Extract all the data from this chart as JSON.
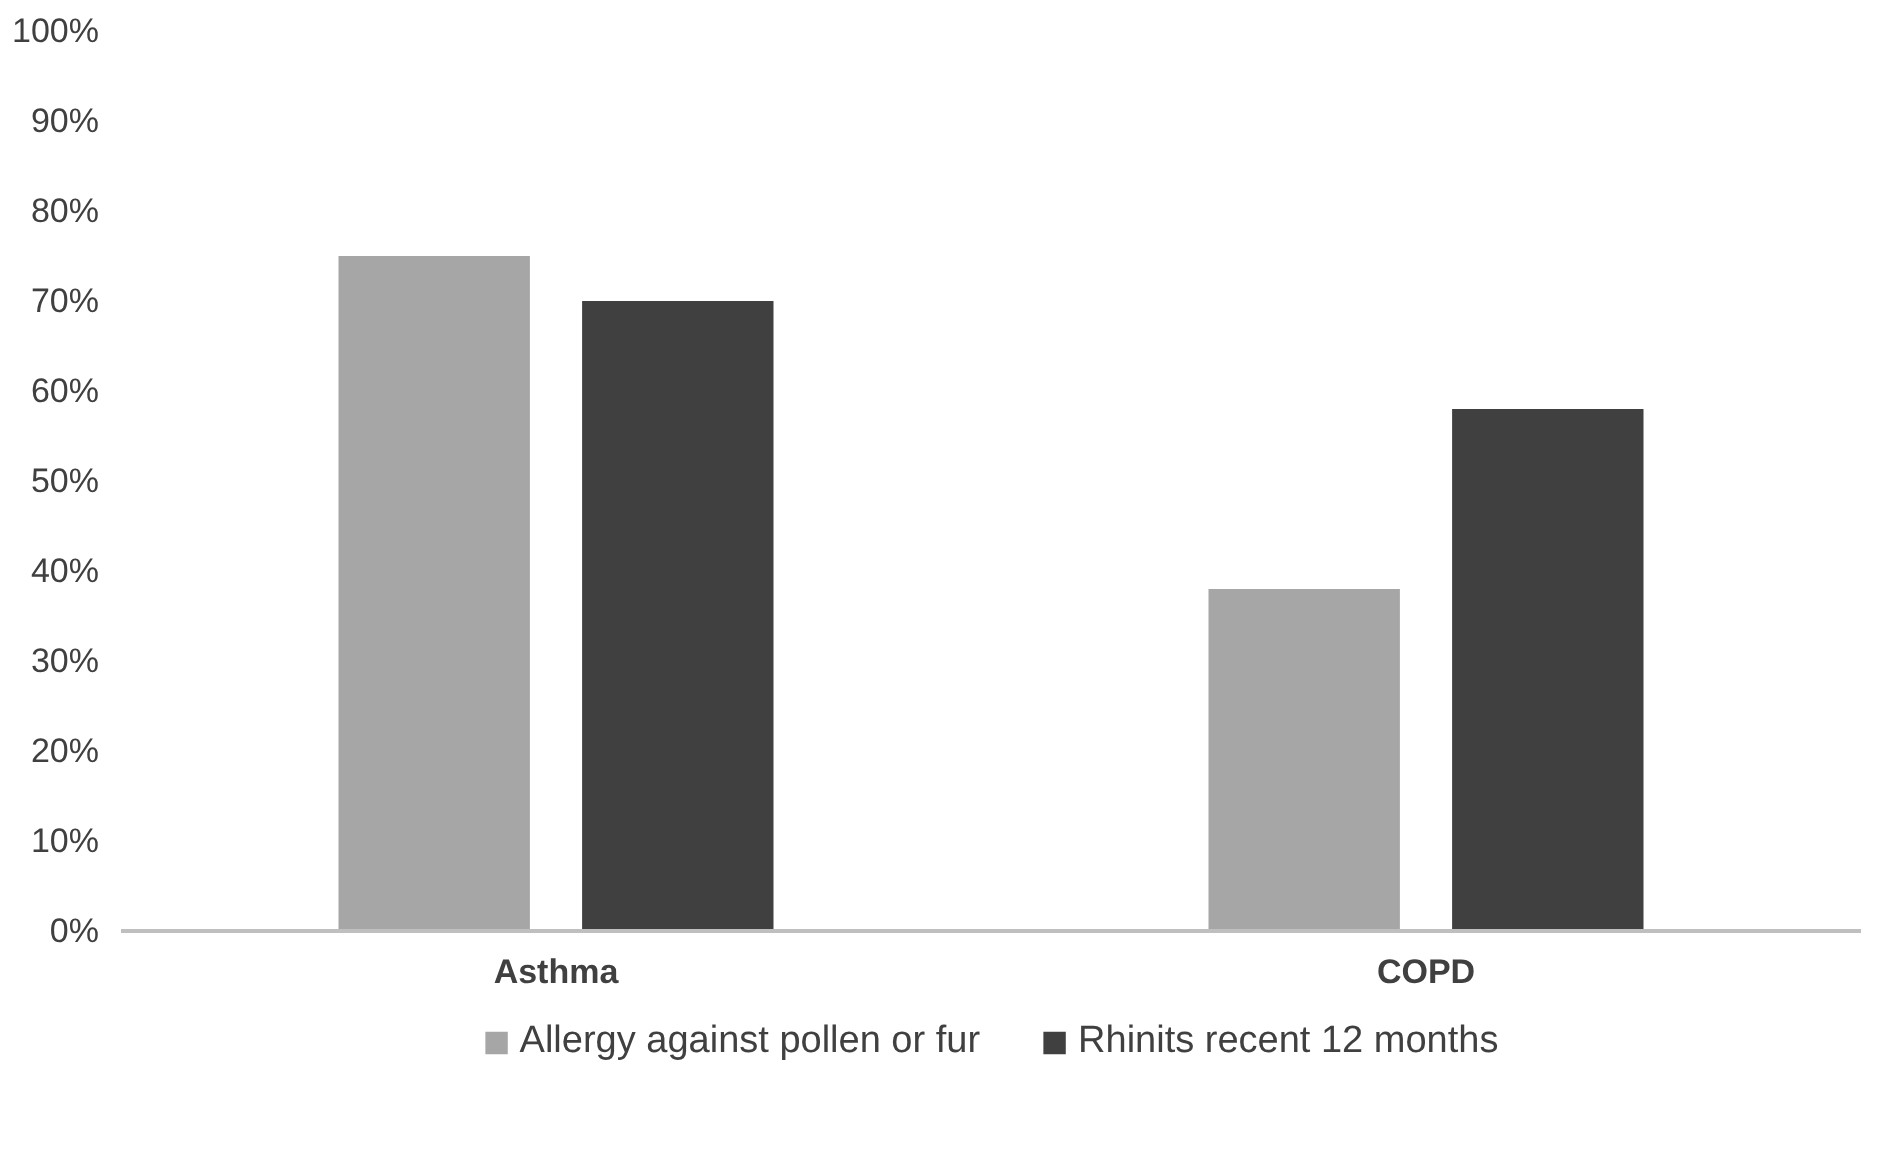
{
  "chart_data": {
    "type": "bar",
    "categories": [
      "Asthma",
      "COPD"
    ],
    "series": [
      {
        "name": "Allergy against pollen or fur",
        "color": "#a6a6a6",
        "values": [
          75,
          38
        ]
      },
      {
        "name": "Rhinits recent 12 months",
        "color": "#404040",
        "values": [
          70,
          58
        ]
      }
    ],
    "ylim": [
      0,
      100
    ],
    "yticks": [
      {
        "value": 0,
        "label": "0%"
      },
      {
        "value": 10,
        "label": "10%"
      },
      {
        "value": 20,
        "label": "20%"
      },
      {
        "value": 30,
        "label": "30%"
      },
      {
        "value": 40,
        "label": "40%"
      },
      {
        "value": 50,
        "label": "50%"
      },
      {
        "value": 60,
        "label": "60%"
      },
      {
        "value": 70,
        "label": "70%"
      },
      {
        "value": 80,
        "label": "80%"
      },
      {
        "value": 90,
        "label": "90%"
      },
      {
        "value": 100,
        "label": "100%"
      }
    ],
    "grid": false,
    "legend": "bottom"
  }
}
